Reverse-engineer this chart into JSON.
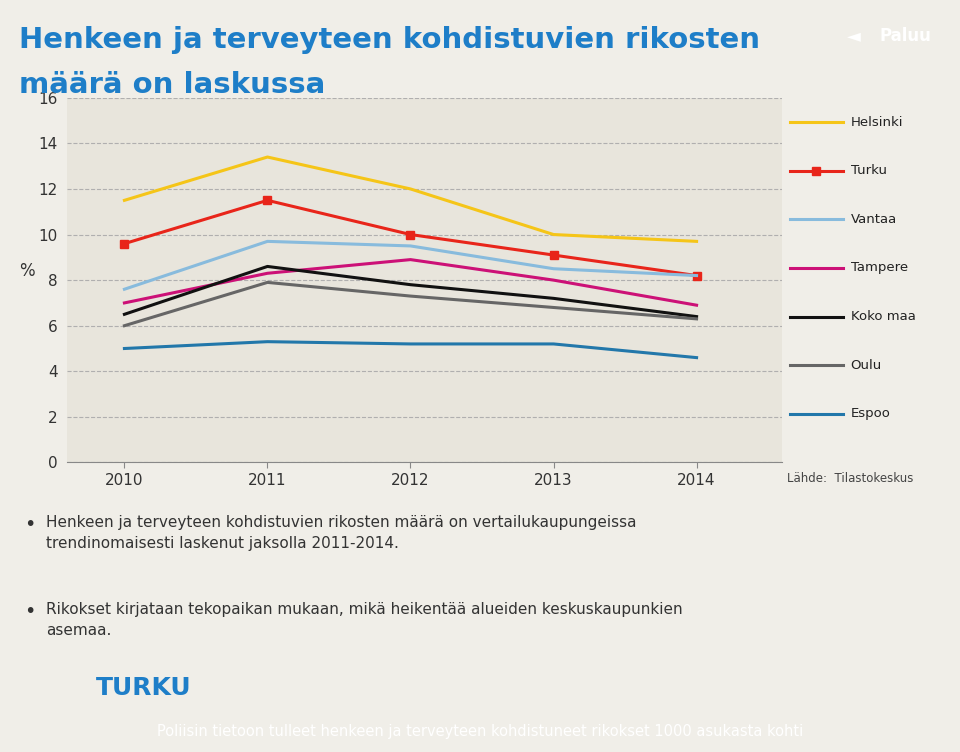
{
  "title_line1": "Henkeen ja terveyteen kohdistuvien rikosten",
  "title_line2": "määrä on laskussa",
  "title_color": "#1E7EC8",
  "ylabel": "%",
  "ylim": [
    0,
    16
  ],
  "yticks": [
    0,
    2,
    4,
    6,
    8,
    10,
    12,
    14,
    16
  ],
  "years": [
    2010,
    2011,
    2012,
    2013,
    2014
  ],
  "series": {
    "Helsinki": {
      "values": [
        11.5,
        13.4,
        12.0,
        10.0,
        9.7
      ],
      "color": "#F5C518",
      "marker": null,
      "linewidth": 2.2
    },
    "Turku": {
      "values": [
        9.6,
        11.5,
        10.0,
        9.1,
        8.2
      ],
      "color": "#E8251A",
      "marker": "s",
      "linewidth": 2.2
    },
    "Vantaa": {
      "values": [
        7.6,
        9.7,
        9.5,
        8.5,
        8.2
      ],
      "color": "#88BBDD",
      "marker": null,
      "linewidth": 2.2
    },
    "Tampere": {
      "values": [
        7.0,
        8.3,
        8.9,
        8.0,
        6.9
      ],
      "color": "#CC1177",
      "marker": null,
      "linewidth": 2.2
    },
    "Koko maa": {
      "values": [
        6.5,
        8.6,
        7.8,
        7.2,
        6.4
      ],
      "color": "#111111",
      "marker": null,
      "linewidth": 2.2
    },
    "Oulu": {
      "values": [
        6.0,
        7.9,
        7.3,
        6.8,
        6.3
      ],
      "color": "#666666",
      "marker": null,
      "linewidth": 2.2
    },
    "Espoo": {
      "values": [
        5.0,
        5.3,
        5.2,
        5.2,
        4.6
      ],
      "color": "#2277AA",
      "marker": null,
      "linewidth": 2.2
    }
  },
  "bg_color": "#F0EEE8",
  "chart_bg_color": "#E8E5DC",
  "grid_color": "#AAAAAA",
  "source_text": "Lähde:  Tilastokeskus",
  "bullet_text1": "Henkeen ja terveyteen kohdistuvien rikosten määrä on vertailukaupungeissa\ntrendinomaisesti laskenut jaksolla 2011-2014.",
  "bullet_text2": "Rikokset kirjataan tekopaikan mukaan, mikä heikentää alueiden keskuskaupunkien\nasemaa.",
  "bottom_bar_text": "Poliisin tietoon tulleet henkeen ja terveyteen kohdistuneet rikokset 1000 asukasta kohti",
  "bottom_bar_color": "#1E7EC8",
  "paluu_text": "Paluu",
  "paluu_bg": "#1E7EC8",
  "turku_color": "#1E7EC8"
}
